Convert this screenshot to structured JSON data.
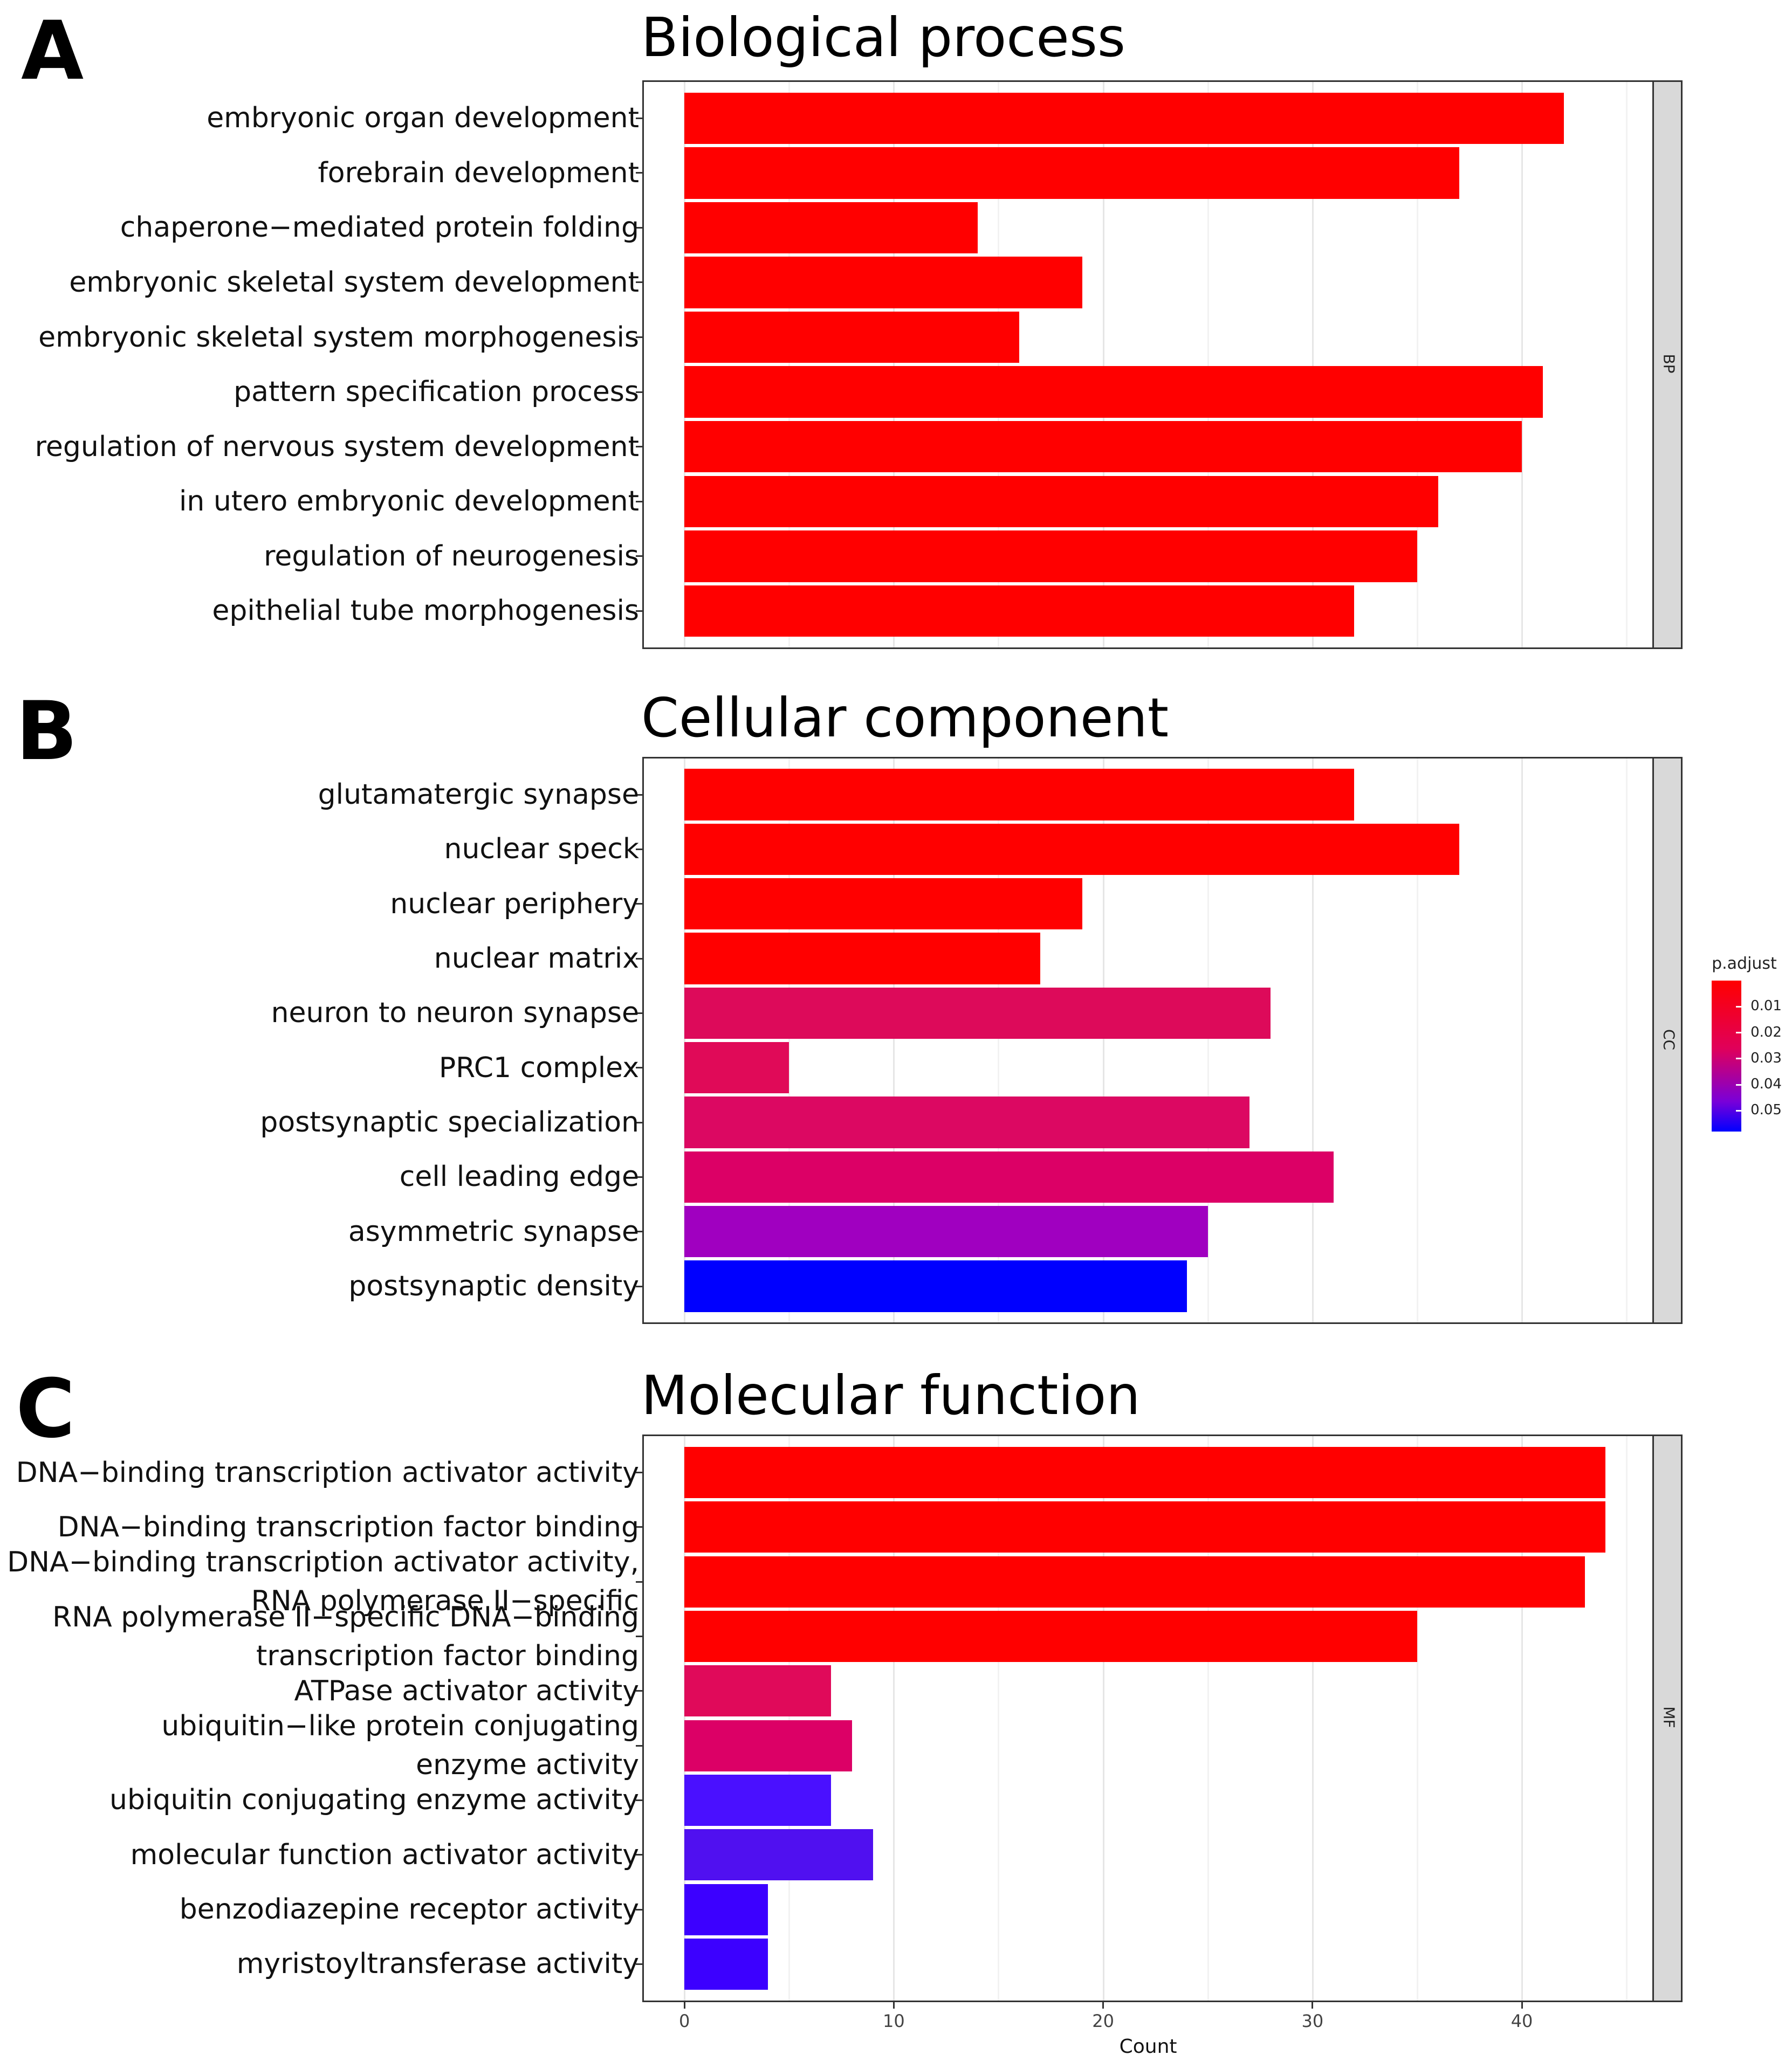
{
  "chart_data": [
    {
      "type": "bar",
      "orientation": "horizontal",
      "panel_letter": "A",
      "title": "Biological process",
      "facet": "BP",
      "categories": [
        "embryonic organ development",
        "forebrain development",
        "chaperone−mediated protein folding",
        "embryonic skeletal system development",
        "embryonic skeletal system morphogenesis",
        "pattern specification process",
        "regulation of nervous system development",
        "in utero embryonic development",
        "regulation of neurogenesis",
        "epithelial tube morphogenesis"
      ],
      "values": [
        42,
        37,
        14,
        19,
        16,
        41,
        40,
        36,
        35,
        32
      ],
      "p_adjust": [
        0.001,
        0.001,
        0.001,
        0.001,
        0.001,
        0.001,
        0.001,
        0.001,
        0.001,
        0.001
      ],
      "colors": [
        "#ff0000",
        "#ff0000",
        "#ff0000",
        "#ff0000",
        "#ff0000",
        "#ff0000",
        "#ff0000",
        "#ff0000",
        "#ff0000",
        "#ff0000"
      ]
    },
    {
      "type": "bar",
      "orientation": "horizontal",
      "panel_letter": "B",
      "title": "Cellular component",
      "facet": "CC",
      "categories": [
        "glutamatergic synapse",
        "nuclear speck",
        "nuclear periphery",
        "nuclear matrix",
        "neuron to neuron synapse",
        "PRC1 complex",
        "postsynaptic specialization",
        "cell leading edge",
        "asymmetric synapse",
        "postsynaptic density"
      ],
      "values": [
        32,
        37,
        19,
        17,
        28,
        5,
        27,
        31,
        25,
        24
      ],
      "p_adjust": [
        0.001,
        0.001,
        0.001,
        0.001,
        0.02,
        0.02,
        0.02,
        0.02,
        0.04,
        0.058
      ],
      "colors": [
        "#ff0000",
        "#ff0000",
        "#ff0000",
        "#ff0000",
        "#dd0a5a",
        "#e00a58",
        "#dc0862",
        "#dc0066",
        "#a000c0",
        "#0000ff"
      ]
    },
    {
      "type": "bar",
      "orientation": "horizontal",
      "panel_letter": "C",
      "title": "Molecular function",
      "facet": "MF",
      "categories": [
        "DNA−binding transcription activator activity",
        "DNA−binding transcription factor binding",
        "DNA−binding transcription activator activity,\nRNA polymerase II−specific",
        "RNA polymerase II−specific DNA−binding\ntranscription factor binding",
        "ATPase activator activity",
        "ubiquitin−like protein conjugating\nenzyme activity",
        "ubiquitin conjugating enzyme activity",
        "molecular function activator activity",
        "benzodiazepine receptor activity",
        "myristoyltransferase activity"
      ],
      "values": [
        44,
        44,
        43,
        35,
        7,
        8,
        7,
        9,
        4,
        4
      ],
      "p_adjust": [
        0.001,
        0.001,
        0.001,
        0.001,
        0.02,
        0.02,
        0.05,
        0.048,
        0.05,
        0.05
      ],
      "colors": [
        "#ff0000",
        "#ff0000",
        "#ff0000",
        "#ff0000",
        "#e00a5a",
        "#dc0066",
        "#4a10ff",
        "#5010f0",
        "#3c00ff",
        "#3c00ff"
      ]
    }
  ],
  "x_axis": {
    "title": "Count",
    "ticks": [
      0,
      10,
      20,
      30,
      40
    ],
    "xlim": [
      -2,
      46.3
    ]
  },
  "legend": {
    "title": "p.adjust",
    "labels": [
      "0.01",
      "0.02",
      "0.03",
      "0.04",
      "0.05"
    ],
    "values": [
      0.01,
      0.02,
      0.03,
      0.04,
      0.05
    ],
    "range": [
      0.0,
      0.058
    ]
  }
}
